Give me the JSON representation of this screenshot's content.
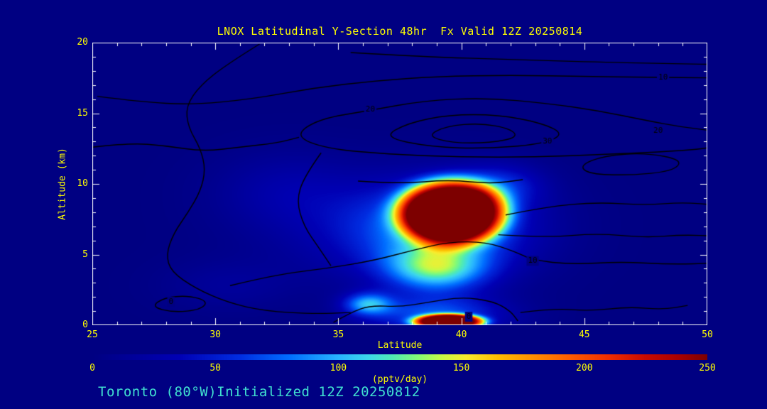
{
  "window": {
    "background": "#000082",
    "title_color": "#FFFF00",
    "axis_color": "#FFFFFF",
    "tick_label_color": "#FFFF00",
    "footer_color": "#40E0D0",
    "contour_color": "#000000"
  },
  "footer": {
    "text": "Toronto (80°W)Initialized 12Z 20250812"
  },
  "chart_data": {
    "type": "heatmap",
    "title": "LNOX Latitudinal Y-Section 48hr  Fx Valid 12Z 20250814",
    "xlabel": "Latitude",
    "ylabel": "Altitude (km)",
    "x_range": [
      25,
      50
    ],
    "y_range": [
      0,
      20
    ],
    "x_ticks": [
      25,
      30,
      35,
      40,
      45,
      50
    ],
    "y_ticks": [
      0,
      5,
      10,
      15,
      20
    ],
    "x_minor_step": 1,
    "y_minor_step": 1,
    "grid": false,
    "colorbar": {
      "label": "(pptv/day)",
      "ticks": [
        0,
        50,
        100,
        150,
        200,
        250
      ],
      "min": 0,
      "max": 250
    },
    "color_scale": [
      [
        0,
        [
          0,
          0,
          130
        ]
      ],
      [
        35,
        [
          0,
          0,
          180
        ]
      ],
      [
        60,
        [
          0,
          45,
          225
        ]
      ],
      [
        80,
        [
          0,
          110,
          255
        ]
      ],
      [
        100,
        [
          40,
          180,
          255
        ]
      ],
      [
        112,
        [
          60,
          215,
          235
        ]
      ],
      [
        122,
        [
          80,
          235,
          180
        ]
      ],
      [
        132,
        [
          130,
          250,
          120
        ]
      ],
      [
        142,
        [
          200,
          250,
          70
        ]
      ],
      [
        152,
        [
          250,
          235,
          45
        ]
      ],
      [
        165,
        [
          255,
          190,
          0
        ]
      ],
      [
        180,
        [
          255,
          140,
          0
        ]
      ],
      [
        195,
        [
          255,
          90,
          0
        ]
      ],
      [
        210,
        [
          240,
          45,
          0
        ]
      ],
      [
        225,
        [
          200,
          10,
          0
        ]
      ],
      [
        238,
        [
          170,
          0,
          0
        ]
      ],
      [
        250,
        [
          125,
          0,
          0
        ]
      ]
    ],
    "field_blobs": [
      {
        "lat": 39.6,
        "alt": 8.0,
        "sx": 2.2,
        "sy": 2.3,
        "p": 4,
        "amp": 268,
        "note": "mid-level plume core ~250 pptv/day near 39.5N, 8 km"
      },
      {
        "lat": 39.2,
        "alt": 7.0,
        "sx": 3.6,
        "sy": 3.4,
        "p": 2,
        "amp": 85,
        "note": "plume halo"
      },
      {
        "lat": 39.0,
        "alt": 4.0,
        "sx": 2.0,
        "sy": 1.6,
        "p": 2,
        "amp": 95,
        "note": "cyan tongue below plume"
      },
      {
        "lat": 39.5,
        "alt": 0.25,
        "sx": 1.45,
        "sy": 0.55,
        "p": 4,
        "amp": 258,
        "note": "surface maximum ~250 near 39.5N, 0.3 km"
      },
      {
        "lat": 39.0,
        "alt": 0.7,
        "sx": 2.8,
        "sy": 1.3,
        "p": 2,
        "amp": 70,
        "note": "surface halo"
      },
      {
        "lat": 36.2,
        "alt": 1.5,
        "sx": 1.0,
        "sy": 0.8,
        "p": 2,
        "amp": 85,
        "note": "small cyan spot"
      },
      {
        "lat": 33.0,
        "alt": 9.5,
        "sx": 3.0,
        "sy": 2.8,
        "p": 2,
        "amp": 26,
        "note": "faint blue patch"
      },
      {
        "lat": 36.5,
        "alt": 6.0,
        "sx": 4.5,
        "sy": 3.2,
        "p": 2,
        "amp": 20,
        "note": "broad faint blue"
      },
      {
        "lat": 41.6,
        "alt": 9.9,
        "sx": 1.7,
        "sy": 1.5,
        "p": 2,
        "amp": 42,
        "note": "light blue patch right of plume"
      },
      {
        "lat": 30.5,
        "alt": 2.8,
        "sx": 2.6,
        "sy": 1.8,
        "p": 2,
        "amp": 16,
        "note": "faint low-level patch"
      }
    ],
    "contours": [
      {
        "level": "10",
        "closed": false,
        "labels": [
          {
            "text": "10",
            "at": [
              48.2,
              17.55
            ]
          }
        ],
        "points": [
          [
            25.2,
            16.2
          ],
          [
            27,
            15.8
          ],
          [
            29,
            15.6
          ],
          [
            31.5,
            16.0
          ],
          [
            34,
            16.8
          ],
          [
            36.5,
            17.3
          ],
          [
            39,
            17.6
          ],
          [
            42,
            17.7
          ],
          [
            45,
            17.6
          ],
          [
            47.5,
            17.55
          ],
          [
            50.4,
            17.5
          ]
        ]
      },
      {
        "level": "20",
        "closed": true,
        "labels": [
          {
            "text": "20",
            "at": [
              36.3,
              15.25
            ]
          },
          {
            "text": "20",
            "at": [
              48.0,
              13.75
            ]
          }
        ],
        "points": [
          [
            33.2,
            13.4
          ],
          [
            34.2,
            14.6
          ],
          [
            36.3,
            15.2
          ],
          [
            38.5,
            15.9
          ],
          [
            41,
            16.1
          ],
          [
            43.5,
            15.7
          ],
          [
            45.5,
            15.2
          ],
          [
            47.5,
            14.5
          ],
          [
            49,
            14.0
          ],
          [
            50.6,
            13.7
          ],
          [
            50.6,
            12.6
          ],
          [
            48.5,
            12.3
          ],
          [
            46,
            12.1
          ],
          [
            43,
            11.9
          ],
          [
            40,
            11.9
          ],
          [
            37,
            12.1
          ],
          [
            34.5,
            12.5
          ]
        ]
      },
      {
        "level": "30",
        "closed": true,
        "labels": [
          {
            "text": "30",
            "at": [
              43.5,
              13.0
            ]
          }
        ],
        "points": [
          [
            36.8,
            13.3
          ],
          [
            37.8,
            14.3
          ],
          [
            39.5,
            14.9
          ],
          [
            41.5,
            14.9
          ],
          [
            43.3,
            14.3
          ],
          [
            44.2,
            13.5
          ],
          [
            43.2,
            12.8
          ],
          [
            41,
            12.5
          ],
          [
            38.8,
            12.6
          ]
        ]
      },
      {
        "level": "",
        "closed": true,
        "labels": [],
        "points": [
          [
            38.6,
            13.4
          ],
          [
            39.4,
            14.1
          ],
          [
            40.8,
            14.3
          ],
          [
            42,
            13.9
          ],
          [
            42.3,
            13.3
          ],
          [
            41.2,
            12.9
          ],
          [
            39.6,
            12.9
          ]
        ]
      },
      {
        "level": "",
        "closed": false,
        "labels": [],
        "points": [
          [
            31.8,
            19.9
          ],
          [
            30.5,
            18.5
          ],
          [
            29.4,
            17.0
          ],
          [
            28.8,
            15.5
          ],
          [
            28.9,
            14.0
          ],
          [
            29.4,
            12.5
          ],
          [
            29.6,
            11.0
          ],
          [
            29.4,
            9.5
          ],
          [
            28.9,
            8.0
          ],
          [
            28.3,
            6.5
          ],
          [
            28.0,
            5.0
          ],
          [
            28.2,
            3.8
          ],
          [
            29.2,
            2.6
          ],
          [
            30.5,
            1.6
          ],
          [
            32,
            1.0
          ],
          [
            34,
            0.8
          ],
          [
            35.5,
            0.9
          ]
        ]
      },
      {
        "level": "10",
        "closed": false,
        "labels": [
          {
            "text": "10",
            "at": [
              42.9,
              4.55
            ]
          }
        ],
        "points": [
          [
            30.6,
            2.8
          ],
          [
            32.5,
            3.6
          ],
          [
            34.5,
            4.0
          ],
          [
            36.5,
            4.6
          ],
          [
            38,
            5.3
          ],
          [
            39.5,
            5.9
          ],
          [
            41,
            5.9
          ],
          [
            42.2,
            5.2
          ],
          [
            42.9,
            4.6
          ],
          [
            44.5,
            4.3
          ],
          [
            46.5,
            4.5
          ],
          [
            48.5,
            4.3
          ],
          [
            50.4,
            4.4
          ]
        ]
      },
      {
        "level": "",
        "closed": false,
        "labels": [],
        "points": [
          [
            41.5,
            6.4
          ],
          [
            43.5,
            6.2
          ],
          [
            45.5,
            6.5
          ],
          [
            47.5,
            6.2
          ],
          [
            49,
            6.4
          ],
          [
            50.4,
            6.3
          ]
        ]
      },
      {
        "level": "",
        "closed": false,
        "labels": [],
        "points": [
          [
            41.8,
            7.8
          ],
          [
            43.5,
            8.4
          ],
          [
            45.5,
            8.7
          ],
          [
            47.5,
            8.5
          ],
          [
            49,
            8.7
          ],
          [
            50.4,
            8.5
          ]
        ]
      },
      {
        "level": "",
        "closed": true,
        "labels": [],
        "points": [
          [
            44.8,
            11.3
          ],
          [
            45.8,
            12.0
          ],
          [
            47.5,
            12.2
          ],
          [
            49.0,
            11.7
          ],
          [
            48.6,
            10.9
          ],
          [
            46.8,
            10.6
          ],
          [
            45.2,
            10.7
          ]
        ]
      },
      {
        "level": "0",
        "closed": false,
        "labels": [
          {
            "text": "0",
            "at": [
              40.3,
              0.6
            ]
          }
        ],
        "points": [
          [
            34.8,
            0.2
          ],
          [
            35.5,
            0.9
          ],
          [
            36.3,
            1.4
          ],
          [
            37.5,
            1.3
          ],
          [
            38.6,
            1.6
          ],
          [
            40,
            2.0
          ],
          [
            41.3,
            1.7
          ],
          [
            42,
            1.0
          ],
          [
            42.3,
            0.3
          ]
        ]
      },
      {
        "level": "",
        "closed": false,
        "labels": [],
        "points": [
          [
            42.4,
            0.9
          ],
          [
            43.8,
            1.2
          ],
          [
            45.2,
            1.0
          ],
          [
            46.8,
            1.3
          ],
          [
            48.2,
            1.1
          ],
          [
            49.2,
            1.4
          ]
        ]
      },
      {
        "level": "0",
        "closed": true,
        "labels": [
          {
            "text": "0",
            "at": [
              28.2,
              1.65
            ]
          }
        ],
        "points": [
          [
            27.4,
            1.3
          ],
          [
            27.9,
            1.95
          ],
          [
            28.9,
            2.1
          ],
          [
            29.7,
            1.7
          ],
          [
            29.4,
            1.1
          ],
          [
            28.3,
            0.9
          ]
        ]
      },
      {
        "level": "",
        "closed": false,
        "labels": [],
        "points": [
          [
            35.5,
            19.3
          ],
          [
            38.5,
            19.0
          ],
          [
            42,
            18.8
          ],
          [
            46,
            18.6
          ],
          [
            49,
            18.5
          ],
          [
            50.4,
            18.45
          ]
        ]
      },
      {
        "level": "",
        "closed": false,
        "labels": [],
        "points": [
          [
            34.3,
            12.2
          ],
          [
            33.6,
            10.5
          ],
          [
            33.3,
            8.8
          ],
          [
            33.6,
            7.0
          ],
          [
            34.2,
            5.5
          ],
          [
            34.7,
            4.2
          ]
        ]
      },
      {
        "level": "",
        "closed": false,
        "labels": [],
        "points": [
          [
            35.8,
            10.2
          ],
          [
            37.5,
            10.0
          ],
          [
            39.5,
            10.3
          ],
          [
            41.2,
            10.0
          ],
          [
            42.5,
            10.3
          ]
        ]
      },
      {
        "level": "",
        "closed": false,
        "labels": [],
        "points": [
          [
            25.0,
            12.6
          ],
          [
            26.5,
            12.9
          ],
          [
            28.0,
            12.7
          ],
          [
            29.5,
            12.3
          ],
          [
            31.0,
            12.6
          ],
          [
            32.5,
            12.9
          ],
          [
            33.4,
            13.3
          ]
        ]
      }
    ]
  }
}
